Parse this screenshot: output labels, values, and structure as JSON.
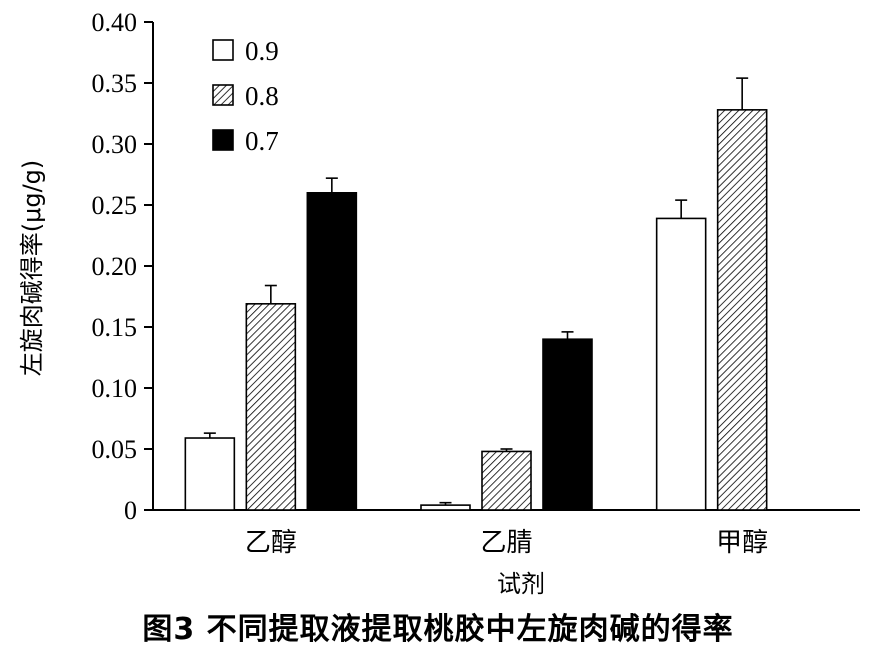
{
  "figure": {
    "caption": "图3   不同提取液提取桃胶中左旋肉碱的得率"
  },
  "chart_data": {
    "type": "bar",
    "xlabel": "试剂",
    "ylabel": "左旋肉碱得率(μg/g)",
    "ylim": [
      0,
      0.4
    ],
    "yticks": [
      0,
      0.05,
      0.1,
      0.15,
      0.2,
      0.25,
      0.3,
      0.35,
      0.4
    ],
    "ytick_labels": [
      "0",
      "0.05",
      "0.10",
      "0.15",
      "0.20",
      "0.25",
      "0.30",
      "0.35",
      "0.40"
    ],
    "categories": [
      "乙醇",
      "乙腈",
      "甲醇"
    ],
    "legend_position": "top-left",
    "grid": false,
    "series": [
      {
        "name": "0.9",
        "fill": "white",
        "color": "#000000",
        "values": [
          0.059,
          0.004,
          0.239
        ],
        "errors": [
          0.004,
          0.002,
          0.015
        ]
      },
      {
        "name": "0.8",
        "fill": "hatched",
        "color": "#000000",
        "values": [
          0.169,
          0.048,
          0.328
        ],
        "errors": [
          0.015,
          0.002,
          0.026
        ]
      },
      {
        "name": "0.7",
        "fill": "black",
        "color": "#000000",
        "values": [
          0.26,
          0.14,
          null
        ],
        "errors": [
          0.012,
          0.006,
          null
        ]
      }
    ]
  }
}
